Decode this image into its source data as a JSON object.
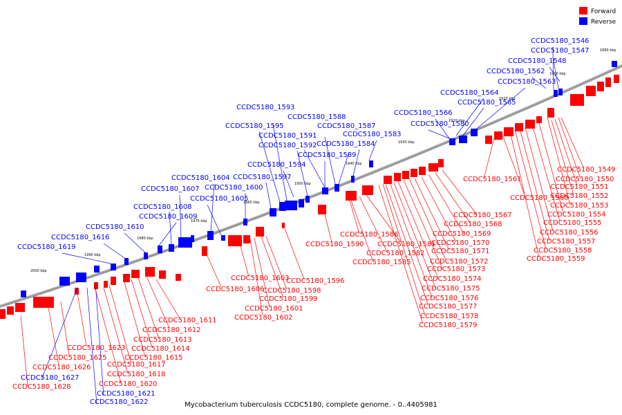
{
  "caption": "Mycobacterium tuberculosis CCDC5180, complete genome. - 0..4405981",
  "legend": [
    {
      "label": "Forward",
      "color": "#ff0000"
    },
    {
      "label": "Reverse",
      "color": "#0000ff"
    }
  ],
  "colors": {
    "forward": "#ff0000",
    "reverse": "#0000ff",
    "backbone": "#888888"
  },
  "ticks": [
    "1890 kbp",
    "1900 kbp",
    "1910 kbp",
    "1920 kbp",
    "1930 kbp",
    "1940 kbp",
    "1950 kbp",
    "1960 kbp",
    "1970 kbp",
    "1980 kbp",
    "1990 kbp",
    "2000 kbp"
  ],
  "labels_reverse": [
    "CCDC5180_1546",
    "CCDC5180_1547",
    "CCDC5180_1548",
    "CCDC5180_1562",
    "CCDC5180_1563",
    "CCDC5180_1564",
    "CCDC5180_1565",
    "CCDC5180_1566",
    "CCDC5180_1580",
    "CCDC5180_1583",
    "CCDC5180_1584",
    "CCDC5180_1587",
    "CCDC5180_1588",
    "CCDC5180_1589",
    "CCDC5180_1591",
    "CCDC5180_1592",
    "CCDC5180_1593",
    "CCDC5180_1594",
    "CCDC5180_1595",
    "CCDC5180_1597",
    "CCDC5180_1600",
    "CCDC5180_1604",
    "CCDC5180_1605",
    "CCDC5180_1607",
    "CCDC5180_1608",
    "CCDC5180_1609",
    "CCDC5180_1610",
    "CCDC5180_1616",
    "CCDC5180_1619",
    "CCDC5180_1621",
    "CCDC5180_1622",
    "CCDC5180_1627"
  ],
  "labels_forward": [
    "CCDC5180_1549",
    "CCDC5180_1550",
    "CCDC5180_1551",
    "CCDC5180_1552",
    "CCDC5180_1553",
    "CCDC5180_1554",
    "CCDC5180_1555",
    "CCDC5180_1556",
    "CCDC5180_1557",
    "CCDC5180_1558",
    "CCDC5180_1559",
    "CCDC5180_1560",
    "CCDC5180_1561",
    "CCDC5180_1567",
    "CCDC5180_1568",
    "CCDC5180_1569",
    "CCDC5180_1570",
    "CCDC5180_1571",
    "CCDC5180_1572",
    "CCDC5180_1573",
    "CCDC5180_1574",
    "CCDC5180_1575",
    "CCDC5180_1576",
    "CCDC5180_1577",
    "CCDC5180_1578",
    "CCDC5180_1579",
    "CCDC5180_1581",
    "CCDC5180_1582",
    "CCDC5180_1585",
    "CCDC5180_1586",
    "CCDC5180_1590",
    "CCDC5180_1596",
    "CCDC5180_1598",
    "CCDC5180_1599",
    "CCDC5180_1601",
    "CCDC5180_1602",
    "CCDC5180_1603",
    "CCDC5180_1606",
    "CCDC5180_1611",
    "CCDC5180_1612",
    "CCDC5180_1613",
    "CCDC5180_1614",
    "CCDC5180_1615",
    "CCDC5180_1617",
    "CCDC5180_1618",
    "CCDC5180_1620",
    "CCDC5180_1623",
    "CCDC5180_1625",
    "CCDC5180_1626",
    "CCDC5180_1628"
  ]
}
